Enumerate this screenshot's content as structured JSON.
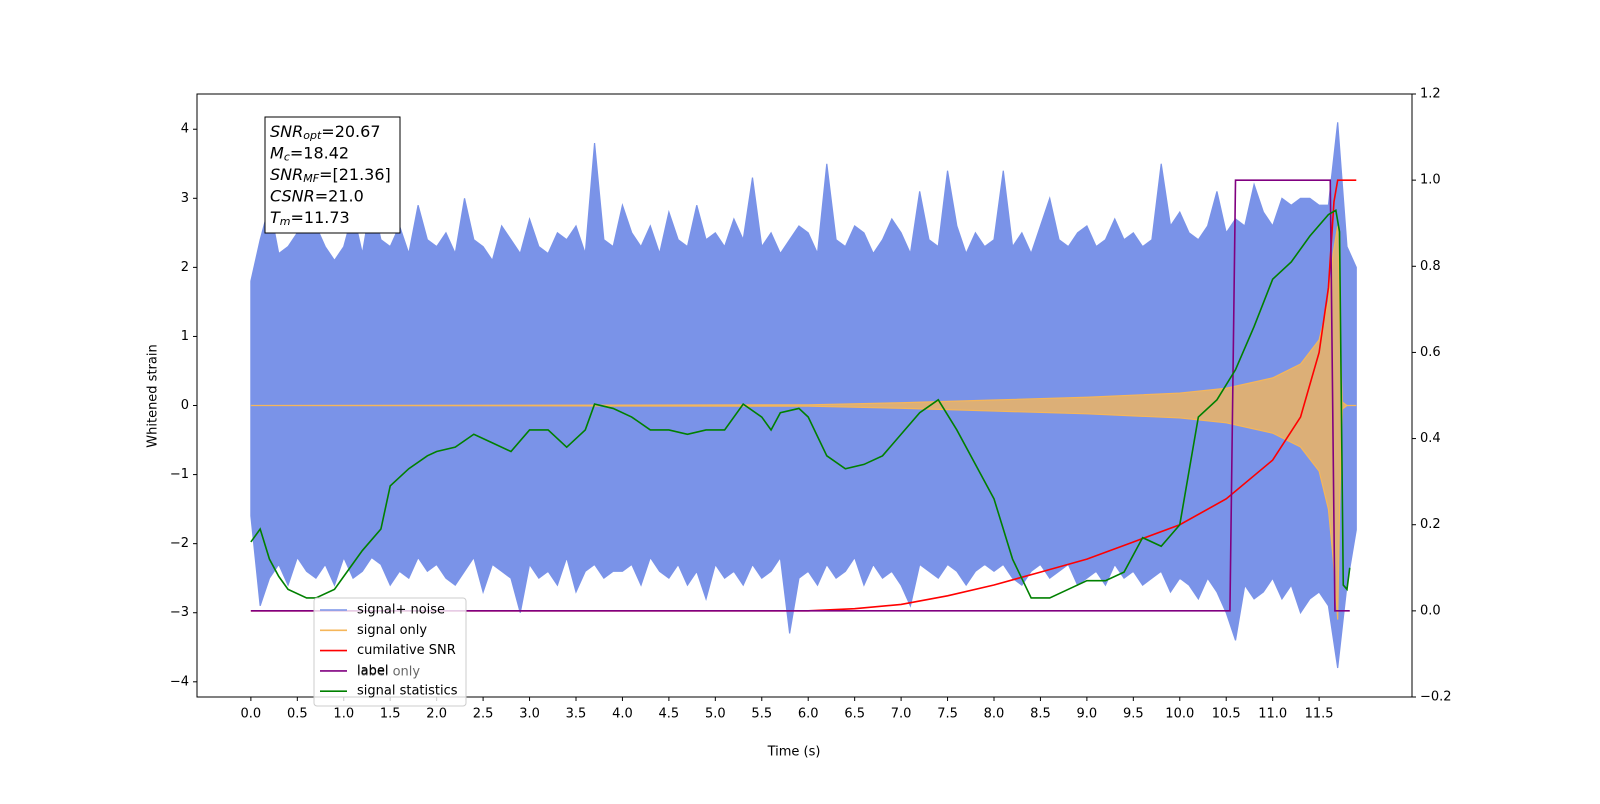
{
  "chart_data": {
    "type": "line",
    "x_label": "Time (s)",
    "y_label": "Whitened strain",
    "xlim": [
      -0.58,
      12.5
    ],
    "ylim": [
      -4.22,
      4.51
    ],
    "y2lim": [
      -0.2,
      1.2
    ],
    "xticks": [
      {
        "value": 0,
        "label": "0.0"
      },
      0.5,
      {
        "value": 1,
        "label": "1.0"
      },
      1.5,
      {
        "value": 2,
        "label": "2.0"
      },
      2.5,
      {
        "value": 3,
        "label": "3.0"
      },
      3.5,
      {
        "value": 4,
        "label": "4.0"
      },
      4.5,
      {
        "value": 5,
        "label": "5.0"
      },
      5.5,
      {
        "value": 6,
        "label": "6.0"
      },
      6.5,
      {
        "value": 7,
        "label": "7.0"
      },
      7.5,
      {
        "value": 8,
        "label": "8.0"
      },
      8.5,
      {
        "value": 9,
        "label": "9.0"
      },
      9.5,
      {
        "value": 10,
        "label": "10.0"
      },
      10.5,
      {
        "value": 11,
        "label": "11.0"
      },
      11.5
    ],
    "yticks": [
      {
        "value": -4,
        "label": "−4"
      },
      {
        "value": -3,
        "label": "−3"
      },
      {
        "value": -2,
        "label": "−2"
      },
      {
        "value": -1,
        "label": "−1"
      },
      0,
      1,
      2,
      3,
      4
    ],
    "y2ticks": [
      {
        "value": -0.2,
        "label": "−0.2"
      },
      {
        "value": 0,
        "label": "0.0"
      },
      0.2,
      0.4,
      0.6,
      0.8,
      {
        "value": 1,
        "label": "1.0"
      },
      1.2
    ],
    "annotation": [
      {
        "text": "SNR",
        "sub": "opt",
        "rest": "=20.67"
      },
      {
        "text": "M",
        "sub": "c",
        "rest": "=18.42"
      },
      {
        "text": "SNR",
        "sub": "MF",
        "rest": "=[21.36]"
      },
      {
        "text": "CSNR",
        "rest": "=21.0"
      },
      {
        "text": "T",
        "sub": "m",
        "rest": "=11.73"
      }
    ],
    "hidden_legend_text": "label only",
    "series": [
      {
        "name": "signal+ noise",
        "color": "#7a93e8",
        "x": [
          0,
          0.1,
          0.2,
          0.3,
          0.4,
          0.5,
          0.6,
          0.7,
          0.8,
          0.9,
          1,
          1.1,
          1.2,
          1.3,
          1.4,
          1.5,
          1.6,
          1.7,
          1.8,
          1.9,
          2,
          2.1,
          2.2,
          2.3,
          2.4,
          2.5,
          2.6,
          2.7,
          2.8,
          2.9,
          3,
          3.1,
          3.2,
          3.3,
          3.4,
          3.5,
          3.6,
          3.7,
          3.8,
          3.9,
          4,
          4.1,
          4.2,
          4.3,
          4.4,
          4.5,
          4.6,
          4.7,
          4.8,
          4.9,
          5,
          5.1,
          5.2,
          5.3,
          5.4,
          5.5,
          5.6,
          5.7,
          5.8,
          5.9,
          6,
          6.1,
          6.2,
          6.3,
          6.4,
          6.5,
          6.6,
          6.7,
          6.8,
          6.9,
          7,
          7.1,
          7.2,
          7.3,
          7.4,
          7.5,
          7.6,
          7.7,
          7.8,
          7.9,
          8,
          8.1,
          8.2,
          8.3,
          8.4,
          8.5,
          8.6,
          8.7,
          8.8,
          8.9,
          9,
          9.1,
          9.2,
          9.3,
          9.4,
          9.5,
          9.6,
          9.7,
          9.8,
          9.9,
          10,
          10.1,
          10.2,
          10.3,
          10.4,
          10.5,
          10.6,
          10.7,
          10.8,
          10.9,
          11,
          11.1,
          11.2,
          11.3,
          11.4,
          11.5,
          11.6,
          11.7,
          11.8,
          11.9
        ],
        "upper": [
          1.8,
          2.4,
          2.9,
          2.2,
          2.3,
          2.5,
          3.2,
          2.6,
          2.3,
          2.1,
          2.3,
          2.8,
          2.2,
          3.0,
          2.4,
          2.3,
          2.6,
          2.2,
          2.9,
          2.4,
          2.3,
          2.5,
          2.2,
          3.0,
          2.4,
          2.3,
          2.1,
          2.6,
          2.4,
          2.2,
          2.7,
          2.3,
          2.2,
          2.5,
          2.4,
          2.6,
          2.2,
          3.8,
          2.4,
          2.3,
          2.9,
          2.5,
          2.3,
          2.6,
          2.2,
          2.8,
          2.4,
          2.3,
          2.9,
          2.4,
          2.5,
          2.3,
          2.7,
          2.4,
          3.3,
          2.3,
          2.5,
          2.2,
          2.4,
          2.6,
          2.5,
          2.2,
          3.5,
          2.4,
          2.3,
          2.6,
          2.5,
          2.2,
          2.4,
          2.7,
          2.5,
          2.2,
          3.1,
          2.4,
          2.3,
          3.4,
          2.6,
          2.2,
          2.5,
          2.3,
          2.4,
          3.4,
          2.3,
          2.5,
          2.2,
          2.6,
          3.0,
          2.4,
          2.3,
          2.5,
          2.6,
          2.3,
          2.4,
          2.7,
          2.4,
          2.5,
          2.3,
          2.4,
          3.5,
          2.6,
          2.8,
          2.5,
          2.4,
          2.6,
          3.1,
          2.5,
          2.7,
          2.6,
          3.2,
          2.8,
          2.6,
          3.0,
          2.9,
          3.0,
          3.0,
          2.9,
          2.9,
          4.1,
          2.3,
          2.0
        ],
        "lower": [
          -1.6,
          -2.9,
          -2.5,
          -2.3,
          -2.6,
          -2.2,
          -2.4,
          -2.5,
          -2.3,
          -2.6,
          -2.2,
          -2.5,
          -2.4,
          -2.2,
          -2.3,
          -2.6,
          -2.4,
          -2.5,
          -2.2,
          -2.4,
          -2.3,
          -2.5,
          -2.6,
          -2.4,
          -2.2,
          -2.7,
          -2.3,
          -2.4,
          -2.5,
          -3.0,
          -2.3,
          -2.5,
          -2.4,
          -2.6,
          -2.2,
          -2.7,
          -2.4,
          -2.3,
          -2.5,
          -2.4,
          -2.4,
          -2.3,
          -2.6,
          -2.2,
          -2.4,
          -2.5,
          -2.3,
          -2.6,
          -2.4,
          -2.8,
          -2.3,
          -2.5,
          -2.4,
          -2.6,
          -2.3,
          -2.5,
          -2.4,
          -2.2,
          -3.3,
          -2.5,
          -2.4,
          -2.6,
          -2.3,
          -2.5,
          -2.4,
          -2.2,
          -2.6,
          -2.3,
          -2.5,
          -2.4,
          -2.6,
          -2.9,
          -2.3,
          -2.4,
          -2.5,
          -2.3,
          -2.4,
          -2.6,
          -2.4,
          -2.3,
          -2.4,
          -2.3,
          -2.5,
          -2.6,
          -2.4,
          -2.3,
          -2.5,
          -2.4,
          -2.3,
          -2.6,
          -2.5,
          -2.4,
          -2.6,
          -2.3,
          -2.5,
          -2.4,
          -2.6,
          -2.5,
          -2.4,
          -2.7,
          -2.5,
          -2.6,
          -2.8,
          -2.5,
          -2.7,
          -3.0,
          -3.4,
          -2.6,
          -2.8,
          -2.7,
          -2.5,
          -2.8,
          -2.6,
          -3.0,
          -2.8,
          -2.7,
          -2.9,
          -3.8,
          -2.6,
          -1.8
        ]
      },
      {
        "name": "signal only",
        "color": "#f5b65a",
        "x": [
          0,
          6,
          7,
          8,
          9,
          10,
          10.5,
          11,
          11.3,
          11.5,
          11.6,
          11.65,
          11.7,
          11.72,
          11.75,
          11.8,
          11.9
        ],
        "upper": [
          0,
          0.01,
          0.04,
          0.08,
          0.12,
          0.18,
          0.25,
          0.4,
          0.6,
          0.95,
          1.5,
          2.2,
          2.6,
          1.2,
          0.05,
          0,
          0
        ],
        "lower": [
          0,
          -0.01,
          -0.04,
          -0.08,
          -0.12,
          -0.18,
          -0.25,
          -0.4,
          -0.6,
          -0.95,
          -1.5,
          -2.2,
          -3.1,
          -1.5,
          -0.05,
          0,
          0
        ]
      },
      {
        "name": "cumilative SNR",
        "color": "#ff0000",
        "axis": "y2",
        "x": [
          0,
          6,
          6.5,
          7,
          7.5,
          8,
          8.5,
          9,
          9.5,
          10,
          10.5,
          11,
          11.3,
          11.5,
          11.6,
          11.66,
          11.7,
          11.9
        ],
        "values": [
          0,
          0,
          0.005,
          0.015,
          0.035,
          0.06,
          0.09,
          0.12,
          0.16,
          0.2,
          0.26,
          0.35,
          0.45,
          0.6,
          0.75,
          0.95,
          1,
          1
        ]
      },
      {
        "name": "label",
        "color": "#800080",
        "axis": "y2",
        "x": [
          0,
          10.54,
          10.6,
          11.62,
          11.67,
          11.83
        ],
        "values": [
          0,
          0,
          1,
          1,
          0,
          0
        ]
      },
      {
        "name": "signal statistics",
        "color": "#008000",
        "axis": "y2",
        "x": [
          0,
          0.1,
          0.2,
          0.3,
          0.4,
          0.6,
          0.7,
          0.9,
          1,
          1.2,
          1.4,
          1.5,
          1.7,
          1.9,
          2,
          2.2,
          2.4,
          2.6,
          2.8,
          3,
          3.2,
          3.4,
          3.6,
          3.7,
          3.9,
          4.1,
          4.3,
          4.5,
          4.7,
          4.9,
          5.1,
          5.3,
          5.5,
          5.6,
          5.7,
          5.9,
          6,
          6.2,
          6.4,
          6.6,
          6.8,
          7,
          7.2,
          7.4,
          7.6,
          7.8,
          8,
          8.2,
          8.4,
          8.6,
          8.8,
          9,
          9.2,
          9.4,
          9.6,
          9.8,
          10,
          10.2,
          10.4,
          10.6,
          10.8,
          11,
          11.2,
          11.4,
          11.6,
          11.68,
          11.72,
          11.76,
          11.8,
          11.83
        ],
        "values": [
          0.16,
          0.19,
          0.12,
          0.08,
          0.05,
          0.03,
          0.03,
          0.05,
          0.08,
          0.14,
          0.19,
          0.29,
          0.33,
          0.36,
          0.37,
          0.38,
          0.41,
          0.39,
          0.37,
          0.42,
          0.42,
          0.38,
          0.42,
          0.48,
          0.47,
          0.45,
          0.42,
          0.42,
          0.41,
          0.42,
          0.42,
          0.48,
          0.45,
          0.42,
          0.46,
          0.47,
          0.45,
          0.36,
          0.33,
          0.34,
          0.36,
          0.41,
          0.46,
          0.49,
          0.42,
          0.34,
          0.26,
          0.12,
          0.03,
          0.03,
          0.05,
          0.07,
          0.07,
          0.09,
          0.17,
          0.15,
          0.2,
          0.45,
          0.49,
          0.56,
          0.66,
          0.77,
          0.81,
          0.87,
          0.92,
          0.93,
          0.88,
          0.06,
          0.05,
          0.1
        ]
      }
    ]
  }
}
